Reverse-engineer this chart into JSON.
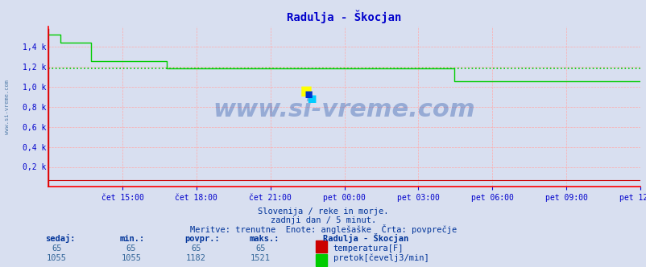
{
  "title": "Radulja - Škocjan",
  "title_color": "#0000cc",
  "bg_color": "#d8dff0",
  "plot_bg_color": "#d8dff0",
  "grid_color": "#ffaaaa",
  "axis_color": "#ff0000",
  "tick_color": "#0000cc",
  "watermark": "www.si-vreme.com",
  "subtitle1": "Slovenija / reke in morje.",
  "subtitle2": "zadnji dan / 5 minut.",
  "subtitle3": "Meritve: trenutne  Enote: anglešaške  Črta: povprečje",
  "ylim": [
    0,
    1600
  ],
  "yticks": [
    200,
    400,
    600,
    800,
    1000,
    1200,
    1400
  ],
  "ytick_labels": [
    "0,2 k",
    "0,4 k",
    "0,6 k",
    "0,8 k",
    "1,0 k",
    "1,2 k",
    "1,4 k"
  ],
  "xtick_labels": [
    "čet 15:00",
    "čet 18:00",
    "čet 21:00",
    "pet 00:00",
    "pet 03:00",
    "pet 06:00",
    "pet 09:00",
    "pet 12:00"
  ],
  "n_points": 252,
  "avg_line_value": 1182,
  "avg_line_color": "#00cc00",
  "flow_color": "#00cc00",
  "temp_color": "#cc0000",
  "flow_data": [
    1521,
    1521,
    1521,
    1521,
    1521,
    1440,
    1440,
    1440,
    1440,
    1440,
    1440,
    1440,
    1440,
    1440,
    1440,
    1440,
    1440,
    1440,
    1255,
    1255,
    1255,
    1255,
    1255,
    1255,
    1255,
    1255,
    1255,
    1255,
    1255,
    1255,
    1255,
    1255,
    1255,
    1255,
    1255,
    1255,
    1255,
    1255,
    1255,
    1255,
    1255,
    1255,
    1255,
    1255,
    1255,
    1255,
    1255,
    1255,
    1255,
    1255,
    1182,
    1182,
    1182,
    1182,
    1182,
    1182,
    1182,
    1182,
    1182,
    1182,
    1182,
    1182,
    1182,
    1182,
    1182,
    1182,
    1182,
    1182,
    1182,
    1182,
    1182,
    1182,
    1182,
    1182,
    1182,
    1182,
    1182,
    1182,
    1182,
    1182,
    1182,
    1182,
    1182,
    1182,
    1182,
    1182,
    1182,
    1182,
    1182,
    1182,
    1182,
    1182,
    1182,
    1182,
    1182,
    1182,
    1182,
    1182,
    1182,
    1182,
    1182,
    1182,
    1182,
    1182,
    1182,
    1182,
    1182,
    1182,
    1182,
    1182,
    1182,
    1182,
    1182,
    1182,
    1182,
    1182,
    1182,
    1182,
    1182,
    1182,
    1182,
    1182,
    1182,
    1182,
    1182,
    1182,
    1182,
    1182,
    1182,
    1182,
    1182,
    1182,
    1182,
    1182,
    1182,
    1182,
    1182,
    1182,
    1182,
    1182,
    1182,
    1182,
    1182,
    1182,
    1182,
    1182,
    1182,
    1182,
    1182,
    1182,
    1182,
    1182,
    1182,
    1182,
    1182,
    1182,
    1182,
    1182,
    1182,
    1182,
    1182,
    1182,
    1182,
    1182,
    1182,
    1182,
    1182,
    1182,
    1182,
    1182,
    1182,
    1182,
    1055,
    1055,
    1055,
    1055,
    1055,
    1055,
    1055,
    1055,
    1055,
    1055,
    1055,
    1055,
    1055,
    1055,
    1055,
    1055,
    1055,
    1055,
    1055,
    1055,
    1055,
    1055,
    1055,
    1055,
    1055,
    1055,
    1055,
    1055,
    1055,
    1055,
    1055,
    1055,
    1055,
    1055,
    1055,
    1055,
    1055,
    1055,
    1055,
    1055,
    1055,
    1055,
    1055,
    1055,
    1055,
    1055,
    1055,
    1055,
    1055,
    1055,
    1055,
    1055,
    1055,
    1055,
    1055,
    1055,
    1055,
    1055,
    1055,
    1055,
    1055,
    1055,
    1055,
    1055,
    1055,
    1055,
    1055,
    1055,
    1055,
    1055,
    1055,
    1055,
    1055,
    1055,
    1055,
    1055,
    1055,
    1055,
    1055,
    1055
  ],
  "temp_value": 65,
  "legend_title": "Radulja - Škocjan",
  "legend_temp": "temperatura[F]",
  "legend_flow": "pretok[čevelj3/min]",
  "table_headers": [
    "sedaj:",
    "min.:",
    "povpr.:",
    "maks.:"
  ],
  "table_row1": [
    "65",
    "65",
    "65",
    "65"
  ],
  "table_row2": [
    "1055",
    "1055",
    "1182",
    "1521"
  ],
  "temp_box_color": "#cc0000",
  "flow_box_color": "#00cc00"
}
